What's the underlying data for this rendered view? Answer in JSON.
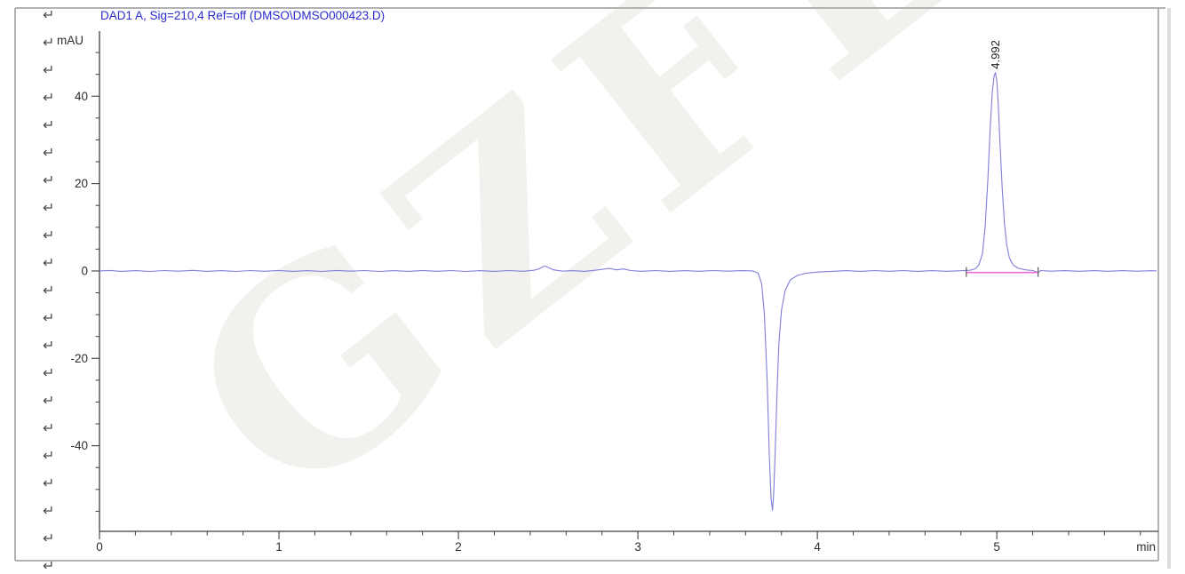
{
  "watermark": {
    "text": "GZFL"
  },
  "document": {
    "break_mark": "↵",
    "break_mark_count": 21
  },
  "chart_data": {
    "type": "line",
    "title": "DAD1 A, Sig=210,4 Ref=off (DMSO\\DMSO000423.D)",
    "xlabel": "min",
    "ylabel": "mAU",
    "xlim": [
      0,
      5.9
    ],
    "ylim": [
      -59.6,
      54.9
    ],
    "x_ticks": [
      0,
      1,
      2,
      3,
      4,
      5
    ],
    "x_minor_step": 0.2,
    "y_ticks": [
      40,
      20,
      0,
      -20,
      -40
    ],
    "y_minor_step": 5,
    "grid": false,
    "legend": false,
    "peaks": [
      {
        "rt_min": 4.992,
        "label": "4.992",
        "apex_mAU": 45.4
      }
    ],
    "integration_baseline": {
      "start_min": 4.83,
      "end_min": 5.23,
      "level_mAU": -0.35,
      "color": "#f06ad8",
      "marker_color": "#5a5a5a"
    },
    "series": [
      {
        "name": "DAD1 A, Sig=210,4 Ref=off",
        "color": "#7e7ed8",
        "points": [
          [
            0,
            0
          ],
          [
            0.06,
            0.12
          ],
          [
            0.12,
            -0.1
          ],
          [
            0.2,
            0.08
          ],
          [
            0.28,
            -0.12
          ],
          [
            0.36,
            0.1
          ],
          [
            0.44,
            -0.06
          ],
          [
            0.52,
            0.14
          ],
          [
            0.6,
            -0.1
          ],
          [
            0.68,
            0.06
          ],
          [
            0.76,
            -0.12
          ],
          [
            0.84,
            0.1
          ],
          [
            0.92,
            -0.08
          ],
          [
            1.0,
            0.12
          ],
          [
            1.08,
            -0.1
          ],
          [
            1.16,
            0.06
          ],
          [
            1.24,
            -0.12
          ],
          [
            1.32,
            0.12
          ],
          [
            1.4,
            -0.06
          ],
          [
            1.48,
            0.1
          ],
          [
            1.56,
            -0.12
          ],
          [
            1.64,
            0.08
          ],
          [
            1.72,
            -0.1
          ],
          [
            1.8,
            0.12
          ],
          [
            1.88,
            -0.08
          ],
          [
            1.96,
            0.1
          ],
          [
            2.04,
            -0.12
          ],
          [
            2.12,
            0.08
          ],
          [
            2.2,
            -0.1
          ],
          [
            2.28,
            0.1
          ],
          [
            2.36,
            -0.08
          ],
          [
            2.42,
            0.15
          ],
          [
            2.45,
            0.5
          ],
          [
            2.48,
            1.15
          ],
          [
            2.5,
            0.8
          ],
          [
            2.53,
            0.25
          ],
          [
            2.58,
            -0.05
          ],
          [
            2.64,
            0.08
          ],
          [
            2.7,
            -0.1
          ],
          [
            2.76,
            0.15
          ],
          [
            2.8,
            0.35
          ],
          [
            2.84,
            0.6
          ],
          [
            2.88,
            0.25
          ],
          [
            2.92,
            0.45
          ],
          [
            2.96,
            0.1
          ],
          [
            3.02,
            -0.08
          ],
          [
            3.1,
            0.1
          ],
          [
            3.18,
            -0.1
          ],
          [
            3.26,
            0.08
          ],
          [
            3.34,
            -0.08
          ],
          [
            3.42,
            0.1
          ],
          [
            3.5,
            -0.06
          ],
          [
            3.58,
            0.08
          ],
          [
            3.64,
            0
          ],
          [
            3.67,
            -0.5
          ],
          [
            3.69,
            -3
          ],
          [
            3.705,
            -10
          ],
          [
            3.72,
            -25
          ],
          [
            3.732,
            -42
          ],
          [
            3.742,
            -52
          ],
          [
            3.75,
            -54.8
          ],
          [
            3.757,
            -51
          ],
          [
            3.765,
            -41
          ],
          [
            3.775,
            -28
          ],
          [
            3.785,
            -17
          ],
          [
            3.8,
            -9
          ],
          [
            3.82,
            -4.5
          ],
          [
            3.85,
            -2
          ],
          [
            3.89,
            -1
          ],
          [
            3.94,
            -0.5
          ],
          [
            4.0,
            -0.25
          ],
          [
            4.08,
            -0.1
          ],
          [
            4.16,
            0.08
          ],
          [
            4.24,
            -0.1
          ],
          [
            4.32,
            0.1
          ],
          [
            4.4,
            -0.08
          ],
          [
            4.48,
            0.1
          ],
          [
            4.56,
            -0.1
          ],
          [
            4.64,
            0.06
          ],
          [
            4.72,
            -0.08
          ],
          [
            4.8,
            0.05
          ],
          [
            4.85,
            0.15
          ],
          [
            4.88,
            0.5
          ],
          [
            4.9,
            1.4
          ],
          [
            4.92,
            4
          ],
          [
            4.935,
            10
          ],
          [
            4.95,
            21
          ],
          [
            4.962,
            32
          ],
          [
            4.975,
            41
          ],
          [
            4.985,
            44.6
          ],
          [
            4.992,
            45.4
          ],
          [
            5.0,
            43.5
          ],
          [
            5.008,
            38
          ],
          [
            5.018,
            29
          ],
          [
            5.03,
            19
          ],
          [
            5.042,
            11
          ],
          [
            5.055,
            6
          ],
          [
            5.07,
            3
          ],
          [
            5.09,
            1.4
          ],
          [
            5.12,
            0.6
          ],
          [
            5.16,
            0.25
          ],
          [
            5.2,
            0.1
          ],
          [
            5.23,
            -0.35
          ],
          [
            5.245,
            0.1
          ],
          [
            5.3,
            -0.05
          ],
          [
            5.38,
            0.08
          ],
          [
            5.46,
            -0.08
          ],
          [
            5.54,
            0.06
          ],
          [
            5.62,
            -0.08
          ],
          [
            5.7,
            0.08
          ],
          [
            5.78,
            -0.06
          ],
          [
            5.86,
            0.05
          ],
          [
            5.89,
            0
          ]
        ]
      }
    ],
    "colors": {
      "title": "#2a2ace",
      "axis": "#3f3f3f",
      "tick_label": "#2d2d2d",
      "trace": "#7e7ed8",
      "border": "#b2b2b2",
      "border_light": "#dcdcda",
      "break_mark": "#4d4d4d",
      "watermark": "#f1f1ee",
      "peak_label": "#1c1c1c"
    }
  }
}
